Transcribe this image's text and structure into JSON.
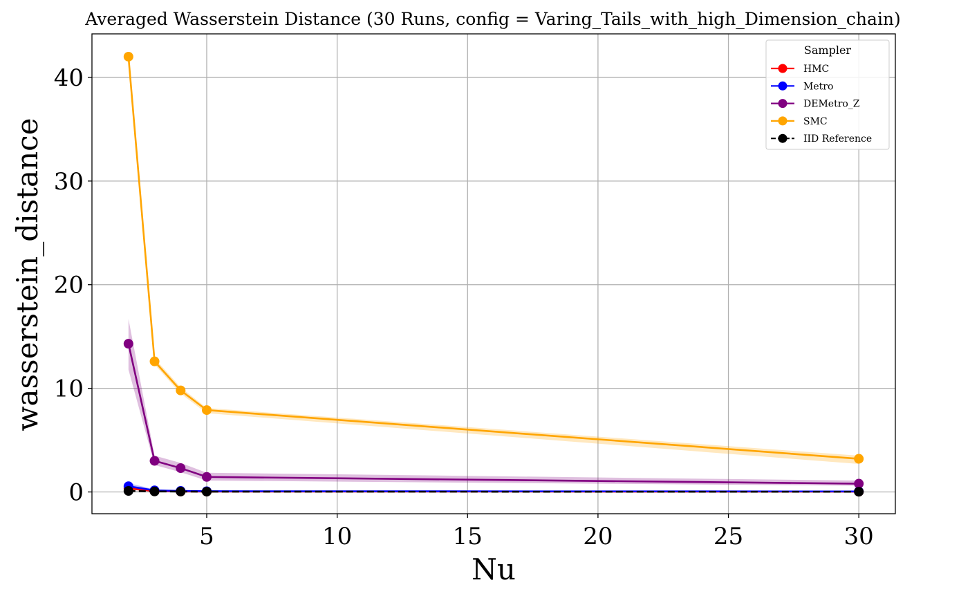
{
  "chart_data": {
    "type": "line",
    "title": "Averaged Wasserstein Distance (30 Runs, config = Varing_Tails_with_high_Dimension_chain)",
    "xlabel": "Nu",
    "ylabel": "wasserstein_distance",
    "x": [
      2,
      3,
      4,
      5,
      30
    ],
    "xlim": [
      0.6,
      31.4
    ],
    "ylim": [
      -2.1,
      44.2
    ],
    "xticks": [
      5,
      10,
      15,
      20,
      25,
      30
    ],
    "yticks": [
      0,
      10,
      20,
      30,
      40
    ],
    "grid": true,
    "legend": {
      "title": "Sampler",
      "placement": "top-right"
    },
    "series": [
      {
        "name": "HMC",
        "color": "#ff0000",
        "dashed": false,
        "values": [
          0.35,
          0.08,
          0.05,
          0.04,
          0.03
        ],
        "lower": [
          0.2,
          0.05,
          0.03,
          0.03,
          0.02
        ],
        "upper": [
          0.5,
          0.12,
          0.08,
          0.06,
          0.05
        ]
      },
      {
        "name": "Metro",
        "color": "#0000ff",
        "dashed": false,
        "values": [
          0.55,
          0.15,
          0.1,
          0.07,
          0.05
        ],
        "lower": [
          0.3,
          0.1,
          0.07,
          0.05,
          0.03
        ],
        "upper": [
          0.85,
          0.25,
          0.14,
          0.1,
          0.07
        ]
      },
      {
        "name": "DEMetro_Z",
        "color": "#800080",
        "dashed": false,
        "values": [
          14.3,
          3.0,
          2.3,
          1.45,
          0.8
        ],
        "lower": [
          11.8,
          2.6,
          1.9,
          1.1,
          0.6
        ],
        "upper": [
          16.7,
          3.5,
          2.8,
          1.85,
          1.1
        ]
      },
      {
        "name": "SMC",
        "color": "#ffa500",
        "dashed": false,
        "values": [
          42.0,
          12.6,
          9.8,
          7.9,
          3.2
        ],
        "lower": [
          41.7,
          12.3,
          9.5,
          7.6,
          2.7
        ],
        "upper": [
          42.3,
          12.9,
          10.1,
          8.1,
          3.5
        ]
      },
      {
        "name": "IID Reference",
        "color": "#000000",
        "dashed": true,
        "values": [
          0.1,
          0.05,
          0.04,
          0.03,
          0.02
        ],
        "lower": [
          0.08,
          0.04,
          0.03,
          0.02,
          0.01
        ],
        "upper": [
          0.12,
          0.06,
          0.05,
          0.04,
          0.03
        ]
      }
    ]
  }
}
